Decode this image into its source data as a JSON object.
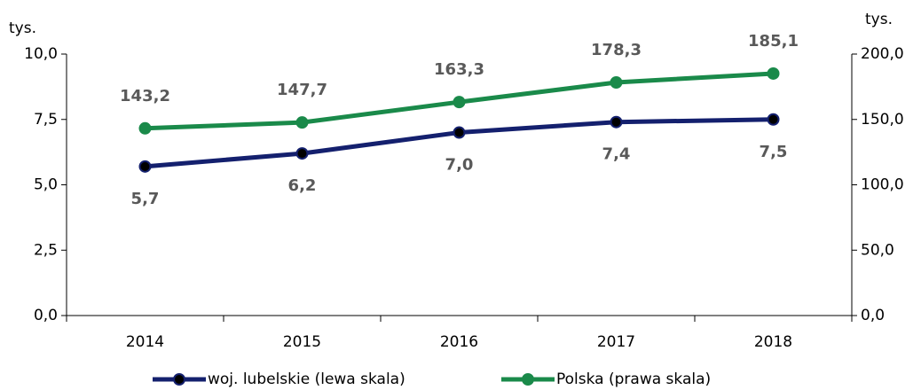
{
  "chart_data": {
    "type": "line",
    "y_label": "tys.",
    "y2_label": "tys.",
    "categories": [
      "2014",
      "2015",
      "2016",
      "2017",
      "2018"
    ],
    "series": [
      {
        "name": "woj. lubelskie (lewa skala)",
        "color": "#14206e",
        "marker_color": "#000000",
        "axis": "y",
        "values": [
          5.7,
          6.2,
          7.0,
          7.4,
          7.5
        ],
        "value_labels": [
          "5,7",
          "6,2",
          "7,0",
          "7,4",
          "7,5"
        ]
      },
      {
        "name": "Polska (prawa skala)",
        "color": "#1a8a4a",
        "marker_color": "#1a8a4a",
        "axis": "y2",
        "values": [
          143.2,
          147.7,
          163.3,
          178.3,
          185.1
        ],
        "value_labels": [
          "143,2",
          "147,7",
          "163,3",
          "178,3",
          "185,1"
        ]
      }
    ],
    "ylim": [
      0,
      10
    ],
    "yticks": [
      {
        "value": 0,
        "label": "0,0"
      },
      {
        "value": 2.5,
        "label": "2,5"
      },
      {
        "value": 5,
        "label": "5,0"
      },
      {
        "value": 7.5,
        "label": "7,5"
      },
      {
        "value": 10,
        "label": "10,0"
      }
    ],
    "y2lim": [
      0,
      200
    ],
    "y2ticks": [
      {
        "value": 0,
        "label": "0,0"
      },
      {
        "value": 50,
        "label": "50,0"
      },
      {
        "value": 100,
        "label": "100,0"
      },
      {
        "value": 150,
        "label": "150,0"
      },
      {
        "value": 200,
        "label": "200,0"
      }
    ],
    "legend": "bottom"
  }
}
